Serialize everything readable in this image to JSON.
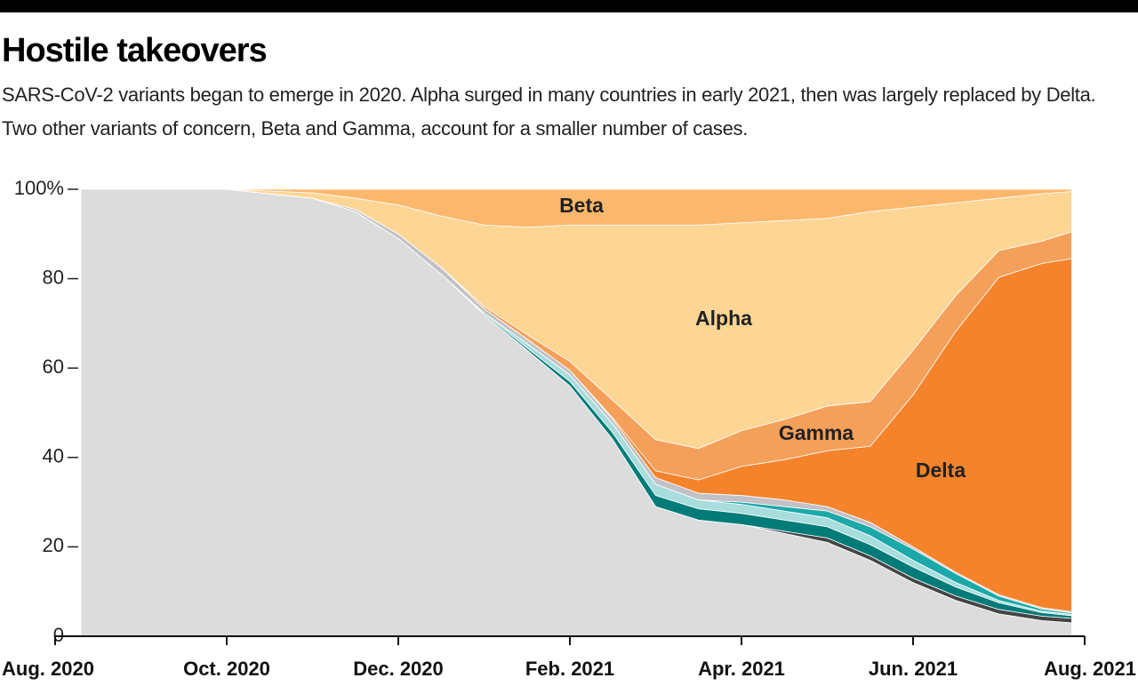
{
  "chart_data": {
    "type": "stacked_area",
    "title": "Hostile takeovers",
    "subtitle": "SARS-CoV-2 variants began to emerge in 2020. Alpha surged in many countries in early 2021, then was largely replaced by Delta. Two other variants of concern, Beta and Gamma, account for a smaller number of cases.",
    "x": [
      0.3,
      1,
      2,
      3,
      3.5,
      4,
      4.5,
      5,
      5.5,
      6,
      6.5,
      7,
      7.5,
      8,
      8.5,
      9,
      9.5,
      10,
      10.5,
      11,
      11.5,
      11.85
    ],
    "xlim": [
      0,
      12
    ],
    "xticks": [
      {
        "value": 0,
        "label": "Aug. 2020"
      },
      {
        "value": 2,
        "label": "Oct. 2020"
      },
      {
        "value": 4,
        "label": "Dec. 2020"
      },
      {
        "value": 6,
        "label": "Feb. 2021"
      },
      {
        "value": 8,
        "label": "Apr. 2021"
      },
      {
        "value": 10,
        "label": "Jun. 2021"
      },
      {
        "value": 12,
        "label": "Aug. 2021"
      }
    ],
    "ylim": [
      0,
      100
    ],
    "yticks": [
      0,
      20,
      40,
      60,
      80,
      {
        "value": 100,
        "label": "100%"
      }
    ],
    "series": [
      {
        "color": "#dcdcdc",
        "values": [
          100,
          100,
          100,
          98,
          95,
          89,
          81,
          72,
          64,
          56,
          44,
          29,
          26,
          25,
          23,
          21,
          17,
          12,
          8,
          5,
          3.5,
          3
        ]
      },
      {
        "color": "#444444",
        "values": [
          0,
          0,
          0,
          0,
          0,
          0,
          0,
          0,
          0,
          0,
          0,
          0,
          0,
          0,
          0.5,
          1,
          1,
          1,
          1,
          1,
          1,
          1
        ]
      },
      {
        "color": "#007b78",
        "values": [
          0,
          0,
          0,
          0,
          0,
          0,
          0,
          0.3,
          0.5,
          1,
          1.5,
          2.5,
          2.5,
          2.5,
          2.5,
          2.5,
          2.5,
          2.5,
          2,
          1.5,
          0.8,
          0.6
        ]
      },
      {
        "color": "#a8dcdd",
        "values": [
          0,
          0,
          0,
          0,
          0,
          0,
          0,
          0,
          1,
          1.5,
          2,
          2.5,
          2,
          2,
          2,
          2,
          2,
          1.5,
          1,
          0.5,
          0.3,
          0.3
        ]
      },
      {
        "color": "#1aa8a8",
        "values": [
          0,
          0,
          0,
          0,
          0,
          0,
          0,
          0,
          0,
          0,
          0,
          0,
          0,
          0.5,
          1,
          1.5,
          2,
          2.5,
          2,
          1,
          0.5,
          0.3
        ]
      },
      {
        "color": "#c2c2c6",
        "values": [
          0,
          0,
          0,
          0,
          0.5,
          1,
          1.5,
          1,
          1,
          1,
          1,
          1.5,
          1.5,
          1.5,
          1.5,
          1,
          1,
          0.5,
          0.3,
          0.3,
          0.3,
          0.3
        ]
      },
      {
        "name": "Delta",
        "color": "#f4832b",
        "values": [
          0,
          0,
          0,
          0,
          0,
          0,
          0,
          0,
          0,
          0,
          0.3,
          1.5,
          3,
          6.5,
          9,
          12.5,
          17,
          34,
          54,
          71,
          77,
          79
        ]
      },
      {
        "name": "Gamma",
        "color": "#f5a05a",
        "values": [
          0,
          0,
          0,
          0,
          0,
          0,
          0,
          0.5,
          1,
          2,
          4,
          7,
          7,
          8,
          9,
          10,
          10,
          10,
          8,
          6,
          5,
          6
        ]
      },
      {
        "name": "Alpha",
        "color": "#fdd594",
        "values": [
          0,
          0,
          0,
          1.2,
          2.5,
          6.5,
          11.5,
          18.2,
          24,
          30.5,
          39.2,
          48,
          50,
          46.5,
          44.5,
          42,
          42.5,
          32,
          20.7,
          11.7,
          10.6,
          9
        ]
      },
      {
        "name": "Beta",
        "color": "#fbb86c",
        "values": [
          0,
          0,
          0,
          0.8,
          2,
          3.5,
          6,
          8,
          8.5,
          8,
          8,
          8,
          8,
          7.5,
          7,
          6.5,
          5,
          4,
          3,
          2,
          1,
          0.5
        ]
      }
    ]
  }
}
